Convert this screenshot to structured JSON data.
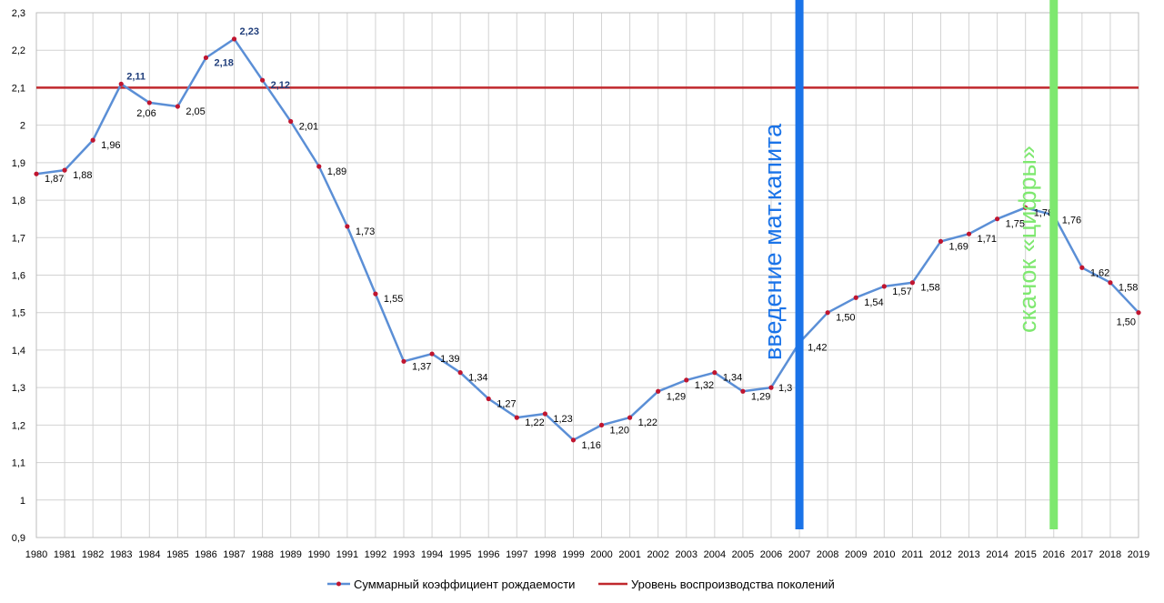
{
  "chart_data": {
    "type": "line",
    "title": "",
    "xlabel": "",
    "ylabel": "",
    "x": [
      1980,
      1981,
      1982,
      1983,
      1984,
      1985,
      1986,
      1987,
      1988,
      1989,
      1990,
      1991,
      1992,
      1993,
      1994,
      1995,
      1996,
      1997,
      1998,
      1999,
      2000,
      2001,
      2002,
      2003,
      2004,
      2005,
      2006,
      2007,
      2008,
      2009,
      2010,
      2011,
      2012,
      2013,
      2014,
      2015,
      2016,
      2017,
      2018,
      2019
    ],
    "ylim": [
      0.9,
      2.3
    ],
    "yticks": [
      0.9,
      1.0,
      1.1,
      1.2,
      1.3,
      1.4,
      1.5,
      1.6,
      1.7,
      1.8,
      1.9,
      2.0,
      2.1,
      2.2,
      2.3
    ],
    "ytick_labels": [
      "0,9",
      "1",
      "1,1",
      "1,2",
      "1,3",
      "1,4",
      "1,5",
      "1,6",
      "1,7",
      "1,8",
      "1,9",
      "2",
      "2,1",
      "2,2",
      "2,3"
    ],
    "grid": true,
    "legend_position": "bottom",
    "series": [
      {
        "name": "Суммарный коэффициент рождаемости",
        "color": "#5b8fd6",
        "marker_color": "#c0152f",
        "values": [
          1.87,
          1.88,
          1.96,
          2.11,
          2.06,
          2.05,
          2.18,
          2.23,
          2.12,
          2.01,
          1.89,
          1.73,
          1.55,
          1.37,
          1.39,
          1.34,
          1.27,
          1.22,
          1.23,
          1.16,
          1.2,
          1.22,
          1.29,
          1.32,
          1.34,
          1.29,
          1.3,
          1.42,
          1.5,
          1.54,
          1.57,
          1.58,
          1.69,
          1.71,
          1.75,
          1.78,
          1.76,
          1.62,
          1.58,
          1.5
        ],
        "labels": [
          "1,87",
          "1,88",
          "1,96",
          "2,11",
          "2,06",
          "2,05",
          "2,18",
          "2,23",
          "2,12",
          "2,01",
          "1,89",
          "1,73",
          "1,55",
          "1,37",
          "1,39",
          "1,34",
          "1,27",
          "1,22",
          "1,23",
          "1,16",
          "1,20",
          "1,22",
          "1,29",
          "1,32",
          "1,34",
          "1,29",
          "1,3",
          "1,42",
          "1,50",
          "1,54",
          "1,57",
          "1,58",
          "1,69",
          "1,71",
          "1,75",
          "1,78",
          "1,76",
          "1,62",
          "1,58",
          "1,50"
        ]
      },
      {
        "name": "Уровень воспроизводства поколений",
        "color": "#c0282d",
        "value": 2.1
      }
    ],
    "annotations": [
      {
        "text": "введение мат.капита",
        "year": 2007,
        "color": "#1a73e8",
        "line_color": "#1a73e8"
      },
      {
        "text": "скачок «цифры»",
        "year": 2016,
        "color": "#7ee86f",
        "line_color": "#7ee86f"
      }
    ]
  }
}
